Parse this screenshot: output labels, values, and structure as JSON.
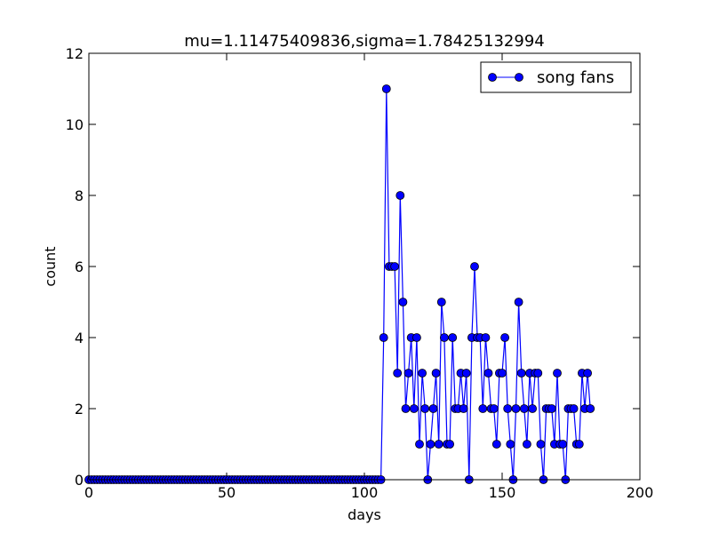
{
  "chart_data": {
    "type": "line",
    "title": "mu=1.11475409836,sigma=1.78425132994",
    "xlabel": "days",
    "ylabel": "count",
    "xlim": [
      0,
      200
    ],
    "ylim": [
      0,
      12
    ],
    "xticks": [
      0,
      50,
      100,
      150,
      200
    ],
    "yticks": [
      0,
      2,
      4,
      6,
      8,
      10,
      12
    ],
    "grid": false,
    "legend_position": "top-right",
    "series": [
      {
        "name": "song fans",
        "color": "#0000ff",
        "marker": "circle",
        "x": [
          0,
          1,
          2,
          3,
          4,
          5,
          6,
          7,
          8,
          9,
          10,
          11,
          12,
          13,
          14,
          15,
          16,
          17,
          18,
          19,
          20,
          21,
          22,
          23,
          24,
          25,
          26,
          27,
          28,
          29,
          30,
          31,
          32,
          33,
          34,
          35,
          36,
          37,
          38,
          39,
          40,
          41,
          42,
          43,
          44,
          45,
          46,
          47,
          48,
          49,
          50,
          51,
          52,
          53,
          54,
          55,
          56,
          57,
          58,
          59,
          60,
          61,
          62,
          63,
          64,
          65,
          66,
          67,
          68,
          69,
          70,
          71,
          72,
          73,
          74,
          75,
          76,
          77,
          78,
          79,
          80,
          81,
          82,
          83,
          84,
          85,
          86,
          87,
          88,
          89,
          90,
          91,
          92,
          93,
          94,
          95,
          96,
          97,
          98,
          99,
          100,
          101,
          102,
          103,
          104,
          105,
          106,
          107,
          108,
          109,
          110,
          111,
          112,
          113,
          114,
          115,
          116,
          117,
          118,
          119,
          120,
          121,
          122,
          123,
          124,
          125,
          126,
          127,
          128,
          129,
          130,
          131,
          132,
          133,
          134,
          135,
          136,
          137,
          138,
          139,
          140,
          141,
          142,
          143,
          144,
          145,
          146,
          147,
          148,
          149,
          150,
          151,
          152,
          153,
          154,
          155,
          156,
          157,
          158,
          159,
          160,
          161,
          162,
          163,
          164,
          165,
          166,
          167,
          168,
          169,
          170,
          171,
          172,
          173,
          174,
          175,
          176,
          177,
          178,
          179,
          180,
          181,
          182
        ],
        "y": [
          0,
          0,
          0,
          0,
          0,
          0,
          0,
          0,
          0,
          0,
          0,
          0,
          0,
          0,
          0,
          0,
          0,
          0,
          0,
          0,
          0,
          0,
          0,
          0,
          0,
          0,
          0,
          0,
          0,
          0,
          0,
          0,
          0,
          0,
          0,
          0,
          0,
          0,
          0,
          0,
          0,
          0,
          0,
          0,
          0,
          0,
          0,
          0,
          0,
          0,
          0,
          0,
          0,
          0,
          0,
          0,
          0,
          0,
          0,
          0,
          0,
          0,
          0,
          0,
          0,
          0,
          0,
          0,
          0,
          0,
          0,
          0,
          0,
          0,
          0,
          0,
          0,
          0,
          0,
          0,
          0,
          0,
          0,
          0,
          0,
          0,
          0,
          0,
          0,
          0,
          0,
          0,
          0,
          0,
          0,
          0,
          0,
          0,
          0,
          0,
          0,
          0,
          0,
          0,
          0,
          0,
          0,
          4,
          11,
          6,
          6,
          6,
          3,
          8,
          5,
          2,
          3,
          4,
          2,
          4,
          1,
          3,
          2,
          0,
          1,
          2,
          3,
          1,
          5,
          4,
          1,
          1,
          4,
          2,
          2,
          3,
          2,
          3,
          0,
          4,
          6,
          4,
          4,
          2,
          4,
          3,
          2,
          2,
          1,
          3,
          3,
          4,
          2,
          1,
          0,
          2,
          5,
          3,
          2,
          1,
          3,
          2,
          3,
          3,
          1,
          0,
          2,
          2,
          2,
          1,
          3,
          1,
          1,
          0,
          2,
          2,
          2,
          1,
          1,
          3,
          2,
          3,
          2
        ]
      }
    ]
  }
}
